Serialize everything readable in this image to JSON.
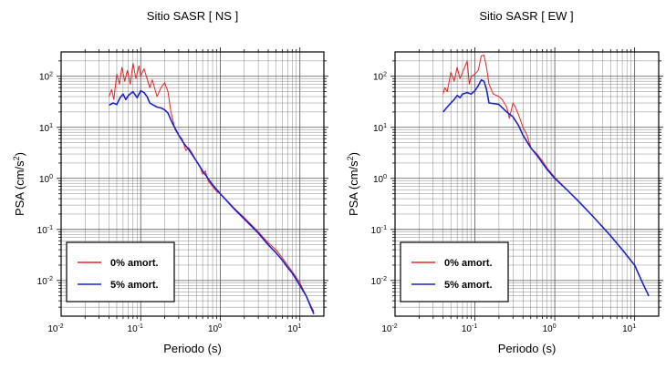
{
  "chart_data": [
    {
      "type": "line",
      "title": "Sitio SASR [ NS ]",
      "xlabel": "Periodo (s)",
      "ylabel_main": "PSA (cm/s",
      "ylabel_sup": "2",
      "ylabel_tail": ")",
      "x_scale": "log",
      "y_scale": "log",
      "xlim": [
        0.01,
        20
      ],
      "ylim": [
        0.002,
        300
      ],
      "grid": true,
      "legend_position": "bottom-left",
      "x_ticks": [
        {
          "base": "10",
          "exp": "-2",
          "value": 0.01
        },
        {
          "base": "10",
          "exp": "-1",
          "value": 0.1
        },
        {
          "base": "10",
          "exp": "0",
          "value": 1
        },
        {
          "base": "10",
          "exp": "1",
          "value": 10
        }
      ],
      "y_ticks": [
        {
          "base": "10",
          "exp": "-2",
          "value": 0.01
        },
        {
          "base": "10",
          "exp": "-1",
          "value": 0.1
        },
        {
          "base": "10",
          "exp": "0",
          "value": 1
        },
        {
          "base": "10",
          "exp": "1",
          "value": 10
        },
        {
          "base": "10",
          "exp": "2",
          "value": 100
        }
      ],
      "series": [
        {
          "name": "0% amort.",
          "color": "#ee2222",
          "points": [
            [
              0.04,
              40
            ],
            [
              0.043,
              55
            ],
            [
              0.046,
              35
            ],
            [
              0.05,
              110
            ],
            [
              0.054,
              70
            ],
            [
              0.058,
              150
            ],
            [
              0.063,
              80
            ],
            [
              0.068,
              130
            ],
            [
              0.074,
              70
            ],
            [
              0.08,
              180
            ],
            [
              0.087,
              90
            ],
            [
              0.095,
              160
            ],
            [
              0.1,
              100
            ],
            [
              0.11,
              140
            ],
            [
              0.12,
              90
            ],
            [
              0.13,
              60
            ],
            [
              0.14,
              85
            ],
            [
              0.16,
              40
            ],
            [
              0.18,
              60
            ],
            [
              0.2,
              75
            ],
            [
              0.22,
              50
            ],
            [
              0.24,
              20
            ],
            [
              0.27,
              9
            ],
            [
              0.3,
              7
            ],
            [
              0.33,
              6
            ],
            [
              0.37,
              3.5
            ],
            [
              0.4,
              4
            ],
            [
              0.45,
              3
            ],
            [
              0.5,
              2.2
            ],
            [
              0.55,
              1.8
            ],
            [
              0.6,
              1.2
            ],
            [
              0.65,
              1.4
            ],
            [
              0.7,
              0.9
            ],
            [
              0.8,
              0.7
            ],
            [
              0.9,
              0.55
            ],
            [
              1,
              0.5
            ],
            [
              1.5,
              0.26
            ],
            [
              2,
              0.17
            ],
            [
              3,
              0.09
            ],
            [
              4,
              0.055
            ],
            [
              5,
              0.04
            ],
            [
              6,
              0.028
            ],
            [
              7,
              0.02
            ],
            [
              8,
              0.015
            ],
            [
              10,
              0.009
            ],
            [
              12,
              0.005
            ],
            [
              14,
              0.003
            ],
            [
              15,
              0.0025
            ]
          ]
        },
        {
          "name": "5% amort.",
          "color": "#1a22cc",
          "points": [
            [
              0.04,
              27
            ],
            [
              0.045,
              30
            ],
            [
              0.05,
              28
            ],
            [
              0.055,
              38
            ],
            [
              0.06,
              45
            ],
            [
              0.065,
              35
            ],
            [
              0.07,
              42
            ],
            [
              0.08,
              50
            ],
            [
              0.09,
              38
            ],
            [
              0.1,
              52
            ],
            [
              0.11,
              48
            ],
            [
              0.12,
              40
            ],
            [
              0.13,
              30
            ],
            [
              0.14,
              28
            ],
            [
              0.16,
              25
            ],
            [
              0.18,
              24
            ],
            [
              0.2,
              22
            ],
            [
              0.22,
              19
            ],
            [
              0.25,
              12
            ],
            [
              0.3,
              7
            ],
            [
              0.35,
              4.8
            ],
            [
              0.4,
              3.7
            ],
            [
              0.5,
              2.2
            ],
            [
              0.6,
              1.4
            ],
            [
              0.7,
              1
            ],
            [
              0.8,
              0.75
            ],
            [
              1,
              0.5
            ],
            [
              1.5,
              0.25
            ],
            [
              2,
              0.16
            ],
            [
              3,
              0.085
            ],
            [
              4,
              0.05
            ],
            [
              5,
              0.035
            ],
            [
              6,
              0.025
            ],
            [
              7,
              0.018
            ],
            [
              8,
              0.014
            ],
            [
              10,
              0.008
            ],
            [
              12,
              0.005
            ],
            [
              14,
              0.0028
            ],
            [
              15,
              0.0022
            ]
          ]
        }
      ]
    },
    {
      "type": "line",
      "title": "Sitio SASR [ EW ]",
      "xlabel": "Periodo (s)",
      "ylabel_main": "PSA (cm/s",
      "ylabel_sup": "2",
      "ylabel_tail": ")",
      "x_scale": "log",
      "y_scale": "log",
      "xlim": [
        0.01,
        20
      ],
      "ylim": [
        0.002,
        300
      ],
      "grid": true,
      "legend_position": "bottom-left",
      "x_ticks": [
        {
          "base": "10",
          "exp": "-2",
          "value": 0.01
        },
        {
          "base": "10",
          "exp": "-1",
          "value": 0.1
        },
        {
          "base": "10",
          "exp": "0",
          "value": 1
        },
        {
          "base": "10",
          "exp": "1",
          "value": 10
        }
      ],
      "y_ticks": [
        {
          "base": "10",
          "exp": "-2",
          "value": 0.01
        },
        {
          "base": "10",
          "exp": "-1",
          "value": 0.1
        },
        {
          "base": "10",
          "exp": "0",
          "value": 1
        },
        {
          "base": "10",
          "exp": "1",
          "value": 10
        },
        {
          "base": "10",
          "exp": "2",
          "value": 100
        }
      ],
      "series": [
        {
          "name": "0% amort.",
          "color": "#ee2222",
          "points": [
            [
              0.04,
              45
            ],
            [
              0.042,
              60
            ],
            [
              0.045,
              50
            ],
            [
              0.05,
              120
            ],
            [
              0.055,
              80
            ],
            [
              0.06,
              150
            ],
            [
              0.065,
              90
            ],
            [
              0.07,
              120
            ],
            [
              0.08,
              200
            ],
            [
              0.085,
              70
            ],
            [
              0.09,
              100
            ],
            [
              0.1,
              110
            ],
            [
              0.11,
              130
            ],
            [
              0.12,
              250
            ],
            [
              0.13,
              260
            ],
            [
              0.14,
              150
            ],
            [
              0.15,
              70
            ],
            [
              0.17,
              45
            ],
            [
              0.2,
              40
            ],
            [
              0.22,
              35
            ],
            [
              0.25,
              25
            ],
            [
              0.27,
              15
            ],
            [
              0.3,
              30
            ],
            [
              0.32,
              25
            ],
            [
              0.35,
              18
            ],
            [
              0.4,
              10
            ],
            [
              0.45,
              7
            ],
            [
              0.5,
              4
            ],
            [
              0.6,
              3
            ],
            [
              0.7,
              2.2
            ],
            [
              0.8,
              1.6
            ],
            [
              1,
              1.05
            ],
            [
              1.5,
              0.55
            ],
            [
              2,
              0.35
            ],
            [
              3,
              0.18
            ],
            [
              5,
              0.075
            ],
            [
              7,
              0.04
            ],
            [
              10,
              0.02
            ],
            [
              13,
              0.008
            ],
            [
              15,
              0.005
            ]
          ]
        },
        {
          "name": "5% amort.",
          "color": "#1a22cc",
          "points": [
            [
              0.04,
              20
            ],
            [
              0.045,
              25
            ],
            [
              0.05,
              30
            ],
            [
              0.055,
              35
            ],
            [
              0.06,
              42
            ],
            [
              0.065,
              38
            ],
            [
              0.07,
              45
            ],
            [
              0.08,
              48
            ],
            [
              0.09,
              45
            ],
            [
              0.1,
              52
            ],
            [
              0.11,
              65
            ],
            [
              0.12,
              85
            ],
            [
              0.13,
              80
            ],
            [
              0.14,
              55
            ],
            [
              0.15,
              30
            ],
            [
              0.18,
              29
            ],
            [
              0.2,
              28
            ],
            [
              0.25,
              20
            ],
            [
              0.3,
              16
            ],
            [
              0.35,
              11
            ],
            [
              0.4,
              7
            ],
            [
              0.5,
              4
            ],
            [
              0.6,
              2.8
            ],
            [
              0.7,
              2
            ],
            [
              0.8,
              1.5
            ],
            [
              1,
              1
            ],
            [
              1.5,
              0.55
            ],
            [
              2,
              0.35
            ],
            [
              3,
              0.18
            ],
            [
              5,
              0.075
            ],
            [
              7,
              0.04
            ],
            [
              10,
              0.02
            ],
            [
              13,
              0.008
            ],
            [
              15,
              0.005
            ]
          ]
        }
      ]
    }
  ]
}
